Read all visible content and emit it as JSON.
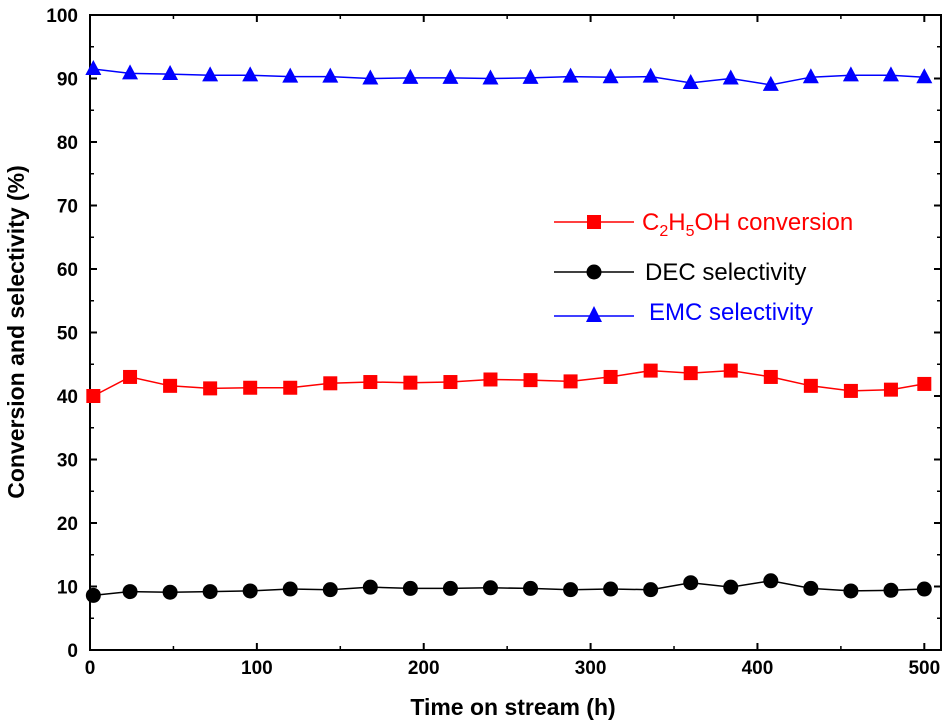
{
  "chart_data": {
    "type": "line",
    "title": "",
    "xlabel": "Time on stream (h)",
    "ylabel": "Conversion and selectivity (%)",
    "xlim": [
      0,
      510
    ],
    "ylim": [
      0,
      100
    ],
    "xticks": [
      0,
      100,
      200,
      300,
      400,
      500
    ],
    "yticks": [
      0,
      10,
      20,
      30,
      40,
      50,
      60,
      70,
      80,
      90,
      100
    ],
    "grid": false,
    "legend_position": "middle-right",
    "x": [
      2,
      24,
      48,
      72,
      96,
      120,
      144,
      168,
      192,
      216,
      240,
      264,
      288,
      312,
      336,
      360,
      384,
      408,
      432,
      456,
      480,
      500
    ],
    "series": [
      {
        "name": "C2H5OH conversion",
        "legend_main": "C",
        "legend_sub1": "2",
        "legend_mid": "H",
        "legend_sub2": "5",
        "legend_tail": "OH conversion",
        "color": "#ff0000",
        "marker": "square",
        "values": [
          40.0,
          43.0,
          41.6,
          41.2,
          41.3,
          41.3,
          42.0,
          42.2,
          42.1,
          42.2,
          42.6,
          42.5,
          42.3,
          43.0,
          44.0,
          43.6,
          44.0,
          43.0,
          41.6,
          40.8,
          41.0,
          41.9
        ]
      },
      {
        "name": "DEC selectivity",
        "color": "#000000",
        "marker": "circle",
        "values": [
          8.6,
          9.2,
          9.1,
          9.2,
          9.3,
          9.6,
          9.5,
          9.9,
          9.7,
          9.7,
          9.8,
          9.7,
          9.5,
          9.6,
          9.5,
          10.6,
          9.9,
          10.9,
          9.7,
          9.3,
          9.4,
          9.6
        ]
      },
      {
        "name": "EMC selectivity",
        "color": "#0000ff",
        "marker": "triangle",
        "values": [
          91.5,
          90.8,
          90.7,
          90.5,
          90.5,
          90.3,
          90.3,
          90.0,
          90.1,
          90.1,
          90.0,
          90.1,
          90.3,
          90.2,
          90.3,
          89.3,
          90.0,
          89.0,
          90.2,
          90.5,
          90.5,
          90.2
        ]
      }
    ]
  }
}
